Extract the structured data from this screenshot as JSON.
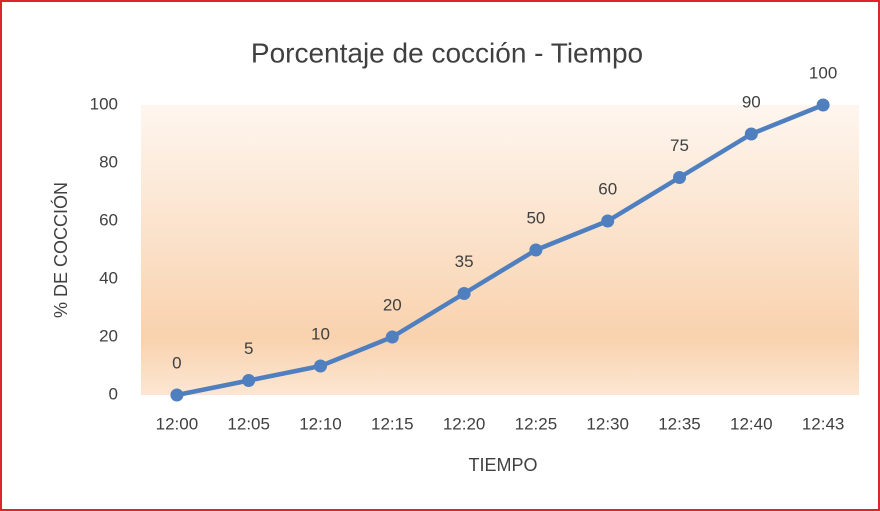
{
  "chart_data": {
    "type": "line",
    "title": "Porcentaje de cocción - Tiempo",
    "x_label": "TIEMPO",
    "y_label": "% DE COCCIÓN",
    "categories": [
      "12:00",
      "12:05",
      "12:10",
      "12:15",
      "12:20",
      "12:25",
      "12:30",
      "12:35",
      "12:40",
      "12:43"
    ],
    "values": [
      0,
      5,
      10,
      20,
      35,
      50,
      60,
      75,
      90,
      100
    ],
    "color": "#4f7fbf",
    "ylim": [
      0,
      100
    ],
    "yticks": [
      0,
      20,
      40,
      60,
      80,
      100
    ],
    "grid": false
  }
}
